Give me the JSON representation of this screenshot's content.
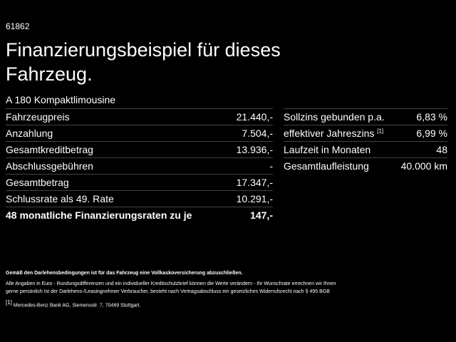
{
  "header": {
    "id": "61862",
    "title": "Finanzierungsbeispiel für dieses Fahrzeug.",
    "model": "A 180 Kompaktlimousine"
  },
  "left_table": {
    "rows": [
      [
        "Fahrzeugpreis",
        "21.440,-"
      ],
      [
        "Anzahlung",
        "7.504,-"
      ],
      [
        "Gesamtkreditbetrag",
        "13.936,-"
      ],
      [
        "Abschlussgebühren",
        "-"
      ],
      [
        "Gesamtbetrag",
        "17.347,-"
      ],
      [
        "Schlussrate als 49. Rate",
        "10.291,-"
      ],
      [
        "48 monatliche Finanzierungsraten zu je",
        "147,-"
      ]
    ]
  },
  "right_table": {
    "rows": [
      [
        "Sollzins gebunden p.a.",
        "6,83 %"
      ],
      [
        "effektiver Jahreszins",
        "6,99 %"
      ],
      [
        "Laufzeit in Monaten",
        "48"
      ],
      [
        "Gesamtlaufleistung",
        "40.000 km"
      ]
    ],
    "footnote_ref": "[1]"
  },
  "footer": {
    "notice": "Gemäß den Darlehensbedingungen ist für das Fahrzeug eine Vollkaskoversicherung abzuschließen.",
    "disclaimer": "Alle Angaben in Euro - Rundungsdifferenzen und ein individueller Kreditschutzbrief können die Werte verändern - Ihr Wunschrate errechnen wir Ihnen gerne persönlich Ist der Darlehens-/Leasingnehmer Verbraucher, besteht nach Vertragsabschluss ein gesetzliches Widerrufsrecht nach § 495 BGB",
    "footnote_mark": "[1]",
    "footnote": "Mercedes-Benz Bank AG, Siemensstr. 7, 70469 Stuttgart."
  }
}
